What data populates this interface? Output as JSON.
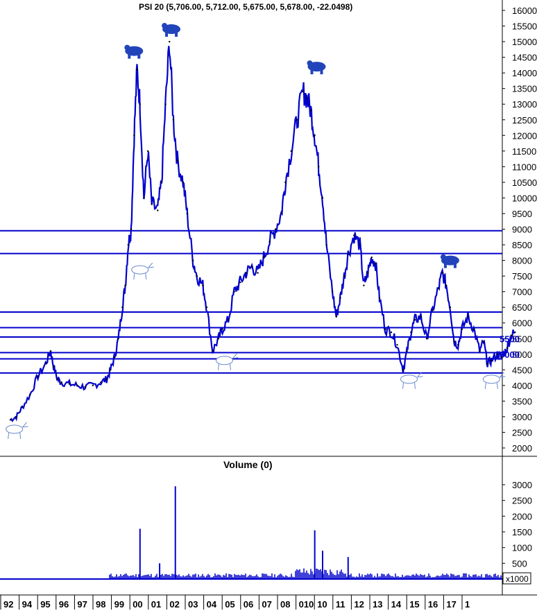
{
  "chart_data": [
    {
      "type": "line",
      "title": "PSI 20 (5,706.00, 5,712.00, 5,675.00, 5,678.00, -22.0498)",
      "ylim": [
        1700,
        16300
      ],
      "y_ticks": [
        2000,
        2500,
        3000,
        3500,
        4000,
        4500,
        5000,
        5500,
        6000,
        6500,
        7000,
        7500,
        8000,
        8500,
        9000,
        9500,
        10000,
        10500,
        11000,
        11500,
        12000,
        12500,
        13000,
        13500,
        14000,
        14500,
        15000,
        15500,
        16000
      ],
      "y_ticks_partial": [
        5000,
        5500
      ],
      "x_ticks": [
        "92",
        "94",
        "95",
        "96",
        "97",
        "98",
        "99",
        "00",
        "01",
        "02",
        "03",
        "04",
        "05",
        "06",
        "07",
        "08",
        "010",
        "10",
        "11",
        "12",
        "13",
        "14",
        "15",
        "16",
        "17",
        "1"
      ],
      "x": [
        1992.0,
        1992.3,
        1992.6,
        1993.0,
        1993.4,
        1993.8,
        1994.05,
        1994.2,
        1994.4,
        1994.6,
        1995.0,
        1995.4,
        1995.8,
        1996.2,
        1996.6,
        1996.9,
        1997.1,
        1997.3,
        1997.5,
        1997.7,
        1997.85,
        1998.0,
        1998.15,
        1998.3,
        1998.45,
        1998.6,
        1998.8,
        1999.0,
        1999.2,
        1999.5,
        1999.7,
        1999.9,
        2000.1,
        2000.3,
        2000.5,
        2000.8,
        2001.0,
        2001.3,
        2001.5,
        2001.8,
        2002.0,
        2002.3,
        2002.6,
        2002.8,
        2003.1,
        2003.4,
        2003.7,
        2004.0,
        2004.3,
        2004.6,
        2004.9,
        2005.2,
        2005.5,
        2005.8,
        2006.0,
        2006.3,
        2006.6,
        2006.9,
        2007.1,
        2007.3,
        2007.5,
        2007.7,
        2007.9,
        2008.1,
        2008.4,
        2008.6,
        2008.8,
        2009.0,
        2009.2,
        2009.5,
        2009.8,
        2010.0,
        2010.2,
        2010.4,
        2010.6,
        2010.8,
        2011.1,
        2011.4,
        2011.7,
        2012.0,
        2012.2,
        2012.4,
        2012.6,
        2012.9,
        2013.2,
        2013.5,
        2013.8,
        2014.0,
        2014.2,
        2014.4,
        2014.6,
        2014.8,
        2015.0,
        2015.3,
        2015.6,
        2015.9,
        2016.1,
        2016.3,
        2016.5,
        2016.8,
        2017.0,
        2017.3,
        2017.5,
        2017.7
      ],
      "series": [
        {
          "values": [
            2900,
            3000,
            3300,
            3700,
            4300,
            4700,
            5100,
            4600,
            4200,
            4100,
            4050,
            4000,
            3950,
            4000,
            4100,
            4200,
            4500,
            4900,
            5500,
            6500,
            7200,
            8500,
            9000,
            12000,
            14100,
            13000,
            10000,
            11500,
            9800,
            9600,
            10500,
            13000,
            15000,
            12500,
            11200,
            10500,
            9500,
            8000,
            7500,
            7200,
            6500,
            5100,
            5500,
            5800,
            6100,
            7000,
            7300,
            7600,
            7800,
            7600,
            8100,
            8600,
            9000,
            9500,
            10500,
            11500,
            12500,
            13400,
            13200,
            12800,
            12000,
            11000,
            10000,
            8500,
            7000,
            6200,
            6800,
            7500,
            8200,
            8800,
            8500,
            7200,
            7600,
            8100,
            7900,
            6800,
            5800,
            5700,
            5300,
            4500,
            5100,
            5700,
            6100,
            6200,
            5500,
            6400,
            7100,
            7600,
            7200,
            6500,
            5400,
            5300,
            5800,
            6200,
            5800,
            5100,
            5400,
            4700,
            4800,
            5000,
            4900,
            5200,
            5600,
            5700
          ]
        }
      ],
      "horizontal_lines": [
        8950,
        8220,
        6350,
        5850,
        5550,
        5050,
        4850,
        4400
      ],
      "bull_markers": [
        {
          "x": 1992.2,
          "y": 2600
        },
        {
          "x": 1998.6,
          "y": 7700
        },
        {
          "x": 2002.9,
          "y": 4800
        },
        {
          "x": 2012.3,
          "y": 4200
        },
        {
          "x": 2016.5,
          "y": 4200
        }
      ],
      "bear_markers": [
        {
          "x": 1998.3,
          "y": 14700
        },
        {
          "x": 2000.2,
          "y": 15400
        },
        {
          "x": 2007.6,
          "y": 14200
        },
        {
          "x": 2014.4,
          "y": 8000
        }
      ]
    },
    {
      "type": "bar",
      "title": "Volume (0)",
      "unit_label": "x1000",
      "ylim": [
        0,
        3200
      ],
      "y_ticks": [
        500,
        1000,
        1500,
        2000,
        2500,
        3000
      ],
      "spikes": [
        {
          "x": 1998.6,
          "value": 1600
        },
        {
          "x": 1999.6,
          "value": 500
        },
        {
          "x": 2000.4,
          "value": 2950
        },
        {
          "x": 2007.5,
          "value": 1550
        },
        {
          "x": 2007.9,
          "value": 900
        },
        {
          "x": 2009.2,
          "value": 700
        }
      ],
      "baseline_level": 130
    }
  ]
}
